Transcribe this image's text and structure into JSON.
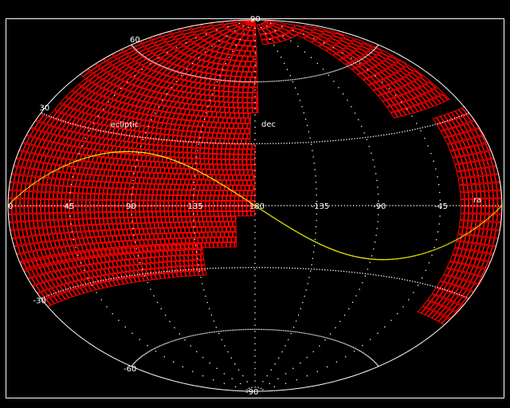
{
  "chart_data": {
    "type": "scatter",
    "projection": "aitoff",
    "xlabel": "ra",
    "ylabel": "dec",
    "ra_ticks": [
      {
        "value": 0,
        "label": "0"
      },
      {
        "value": 45,
        "label": "45"
      },
      {
        "value": 90,
        "label": "90"
      },
      {
        "value": 135,
        "label": "135"
      },
      {
        "value": 180,
        "label": "180"
      },
      {
        "value": 225,
        "label": "-135"
      },
      {
        "value": 270,
        "label": "-90"
      },
      {
        "value": 315,
        "label": "-45"
      }
    ],
    "dec_ticks": [
      {
        "value": 90,
        "label": "90"
      },
      {
        "value": 60,
        "label": "60"
      },
      {
        "value": 30,
        "label": "30"
      },
      {
        "value": -30,
        "label": "-30"
      },
      {
        "value": -60,
        "label": "-60"
      },
      {
        "value": -90,
        "label": "-90"
      }
    ],
    "grid": true,
    "annotations": [
      {
        "text": "ecliptic",
        "ra": 60,
        "dec": 32
      }
    ],
    "ecliptic_obliquity_deg": 23.44,
    "coverage_regions": [
      {
        "ra": [
          0,
          180
        ],
        "dec": [
          -5,
          30
        ]
      },
      {
        "ra": [
          0,
          166
        ],
        "dec": [
          -20,
          -5
        ]
      },
      {
        "ra": [
          0,
          140
        ],
        "dec": [
          -33,
          -20
        ]
      },
      {
        "ra": [
          8,
          176
        ],
        "dec": [
          30,
          45
        ]
      },
      {
        "ra": [
          0,
          183
        ],
        "dec": [
          45,
          88
        ]
      },
      {
        "ra": [
          200,
          345
        ],
        "dec": [
          78,
          88
        ]
      },
      {
        "ra": [
          300,
          354
        ],
        "dec": [
          36,
          78
        ]
      },
      {
        "ra": [
          330,
          360
        ],
        "dec": [
          -40,
          32
        ]
      }
    ],
    "colors": {
      "coverage": "#ff0000",
      "grid": "#ffffff",
      "ecliptic": "#ffff00",
      "background": "#000000"
    }
  }
}
